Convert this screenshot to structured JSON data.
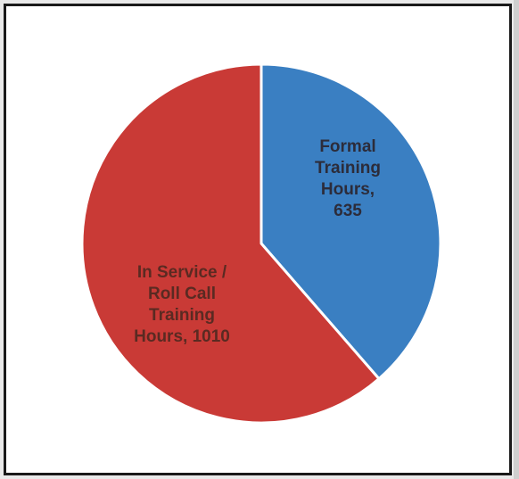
{
  "chart_data": {
    "type": "pie",
    "slices": [
      {
        "label_lines": [
          "Formal",
          "Training",
          "Hours,",
          "635"
        ],
        "value": 635,
        "color": "#3a7fc2",
        "text_color": "#2c2c3a"
      },
      {
        "label_lines": [
          "In Service /",
          "Roll Call",
          "Training",
          "Hours, 1010"
        ],
        "value": 1010,
        "color": "#c93a36",
        "text_color": "#5a2a22"
      }
    ],
    "start_angle": "12 o'clock",
    "direction": "clockwise",
    "legend": "none",
    "slice_border_color": "#ffffff"
  }
}
